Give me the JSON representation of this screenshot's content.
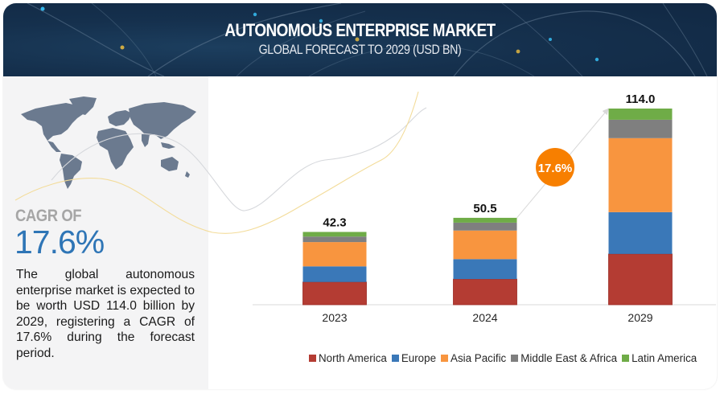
{
  "header": {
    "title": "AUTONOMOUS ENTERPRISE MARKET",
    "subtitle": "GLOBAL FORECAST TO 2029 (USD BN)"
  },
  "summary": {
    "cagr_label": "CAGR OF",
    "cagr_value": "17.6%",
    "description": "The global autonomous enterprise market is expected to be worth USD 114.0 billion by 2029, registering a CAGR of 17.6% during the forecast period."
  },
  "icons": {
    "world_map": "world-map-icon"
  },
  "colors": {
    "header_bg": "#15304d",
    "cagr_blue": "#2e75b6",
    "cagr_badge": "#f77f00",
    "north_america": "#b43c33",
    "europe": "#3a78b8",
    "asia_pacific": "#f8953f",
    "middle_east_africa": "#7f7f7f",
    "latin_america": "#6fac47"
  },
  "chart_data": {
    "type": "bar",
    "stacked": true,
    "title": "AUTONOMOUS ENTERPRISE MARKET",
    "subtitle": "GLOBAL FORECAST TO 2029 (USD BN)",
    "xlabel": "",
    "ylabel": "",
    "ylim": [
      0,
      114.0
    ],
    "grid": false,
    "legend_position": "bottom",
    "categories": [
      "2023",
      "2024",
      "2029"
    ],
    "totals": [
      "42.3",
      "50.5",
      "114.0"
    ],
    "series": [
      {
        "name": "North America",
        "color": "#b43c33",
        "values": [
          13.2,
          14.9,
          29.5
        ]
      },
      {
        "name": "Europe",
        "color": "#3a78b8",
        "values": [
          9.1,
          11.6,
          24.3
        ]
      },
      {
        "name": "Asia Pacific",
        "color": "#f8953f",
        "values": [
          14.1,
          16.6,
          43.0
        ]
      },
      {
        "name": "Middle East & Africa",
        "color": "#7f7f7f",
        "values": [
          3.2,
          4.6,
          10.7
        ]
      },
      {
        "name": "Latin America",
        "color": "#6fac47",
        "values": [
          2.7,
          2.8,
          6.5
        ]
      }
    ],
    "annotation": {
      "text": "17.6%",
      "from": "2024",
      "to": "2029"
    }
  }
}
